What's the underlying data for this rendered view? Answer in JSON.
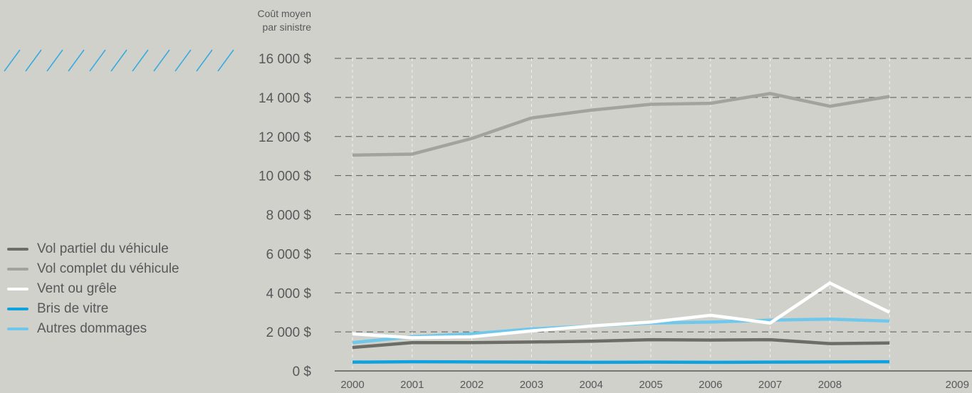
{
  "chart_data": {
    "type": "line",
    "ylabel_line1": "Coût moyen",
    "ylabel_line2": "par sinistre",
    "x": [
      "2000",
      "2001",
      "2002",
      "2003",
      "2004",
      "2005",
      "2006",
      "2007",
      "2008",
      "2009"
    ],
    "y_ticks": [
      0,
      2000,
      4000,
      6000,
      8000,
      10000,
      12000,
      14000,
      16000
    ],
    "y_tick_labels": [
      "0 $",
      "2 000 $",
      "4 000 $",
      "6 000 $",
      "8 000 $",
      "10 000 $",
      "12 000 $",
      "14 000 $",
      "16 000 $"
    ],
    "ylim": [
      0,
      16000
    ],
    "grid": true,
    "legend_position": "left",
    "series": [
      {
        "name": "Vol partiel du véhicule",
        "color": "#6d6d67",
        "values": [
          1200,
          1450,
          1450,
          1480,
          1520,
          1600,
          1580,
          1600,
          1400,
          1430
        ]
      },
      {
        "name": "Vol complet du véhicule",
        "color": "#a3a39d",
        "values": [
          11050,
          11100,
          11900,
          12950,
          13350,
          13650,
          13700,
          14200,
          13550,
          14050
        ]
      },
      {
        "name": "Vent ou grêle",
        "color": "#ffffff",
        "values": [
          1900,
          1700,
          1750,
          2050,
          2300,
          2500,
          2850,
          2450,
          4500,
          3000
        ]
      },
      {
        "name": "Bris de vitre",
        "color": "#0fa2df",
        "values": [
          450,
          470,
          460,
          450,
          440,
          450,
          440,
          450,
          460,
          470
        ]
      },
      {
        "name": "Autres dommages",
        "color": "#6fc8ec",
        "values": [
          1450,
          1750,
          1900,
          2150,
          2300,
          2450,
          2500,
          2600,
          2650,
          2550
        ]
      }
    ]
  },
  "decoration": {
    "hatch_color": "#34a9e0"
  }
}
